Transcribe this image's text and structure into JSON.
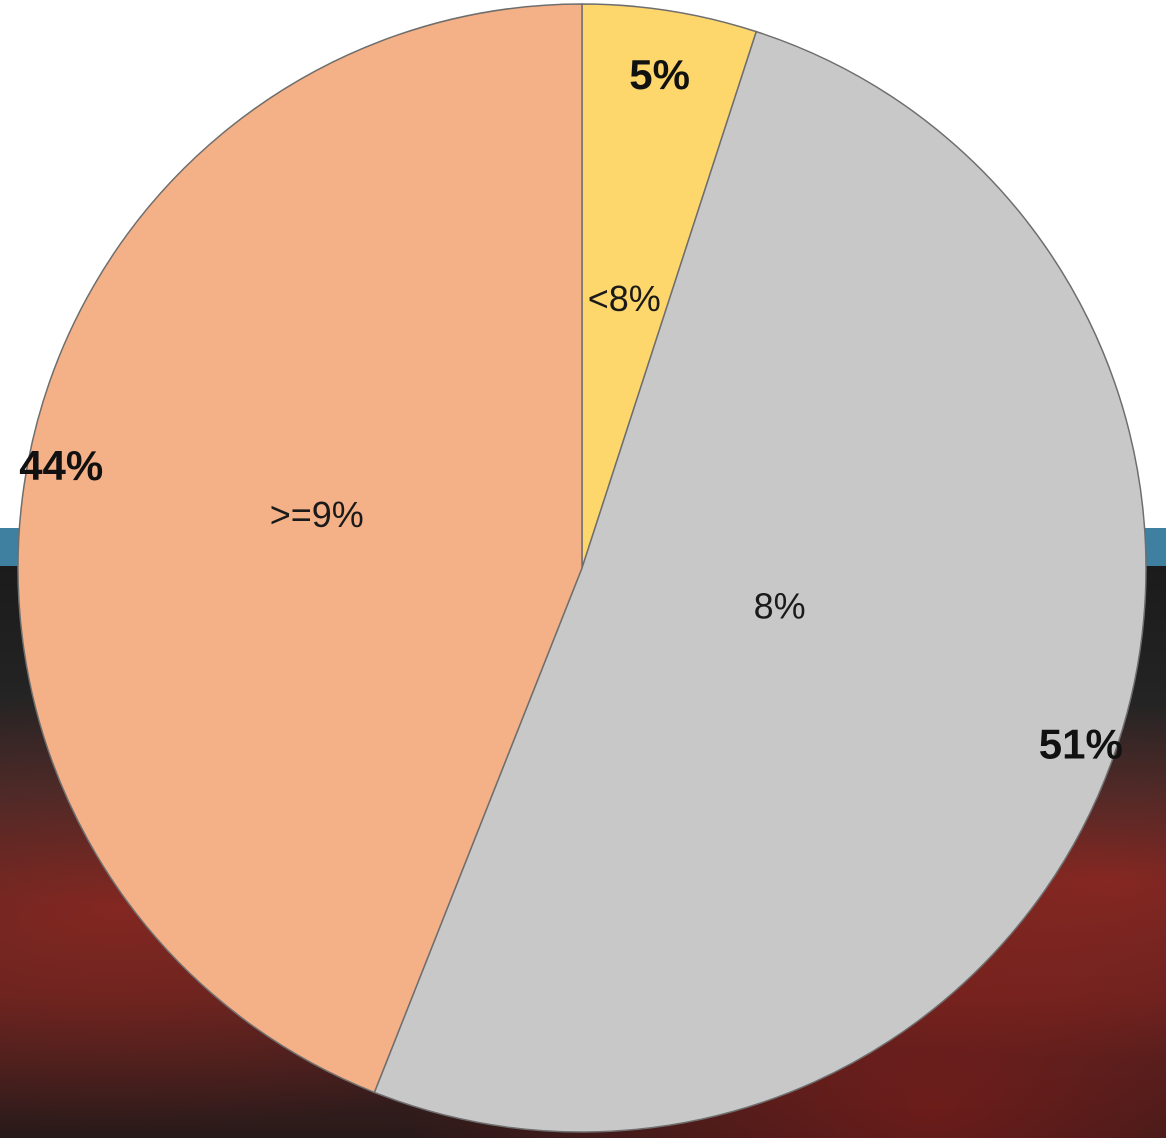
{
  "chart_data": {
    "type": "pie",
    "title": "",
    "slices": [
      {
        "label": "<8%",
        "value": 5,
        "value_label": "5%",
        "color": "#fdd66c"
      },
      {
        "label": "8%",
        "value": 51,
        "value_label": "51%",
        "color": "#c8c8c8"
      },
      {
        "label": ">=9%",
        "value": 44,
        "value_label": "44%",
        "color": "#f4b086"
      }
    ],
    "start_angle": "12 o'clock",
    "direction": "clockwise",
    "slice_border_color": "#6e6e6e",
    "legend": "none"
  },
  "background": {
    "band_color": "#3f7f9f",
    "photo_tint": "dark-red"
  }
}
